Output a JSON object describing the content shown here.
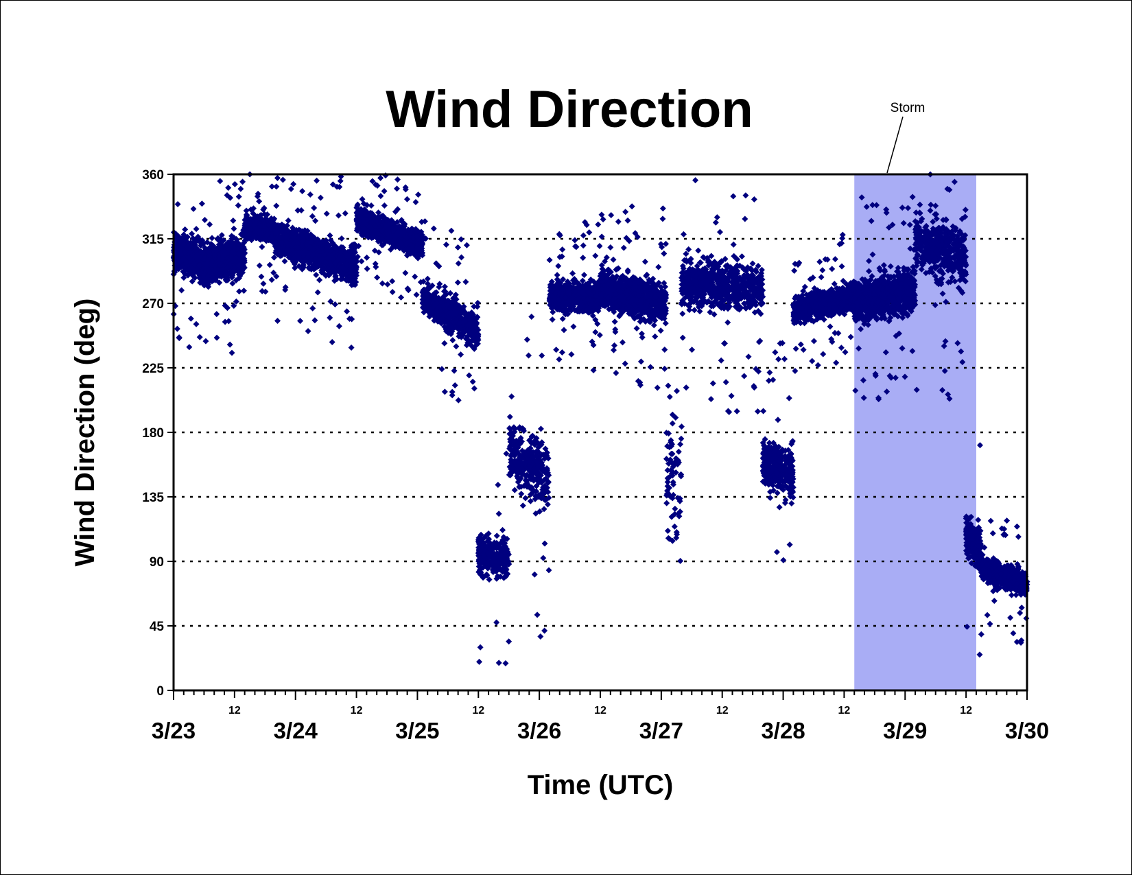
{
  "chart_data": {
    "type": "scatter",
    "title": "Wind Direction",
    "xlabel": "Time (UTC)",
    "ylabel": "Wind Direction (deg)",
    "ylim": [
      0,
      360
    ],
    "yticks": [
      0,
      45,
      90,
      135,
      180,
      225,
      270,
      315,
      360
    ],
    "xlim": [
      "3/23 00:00",
      "3/30 00:00"
    ],
    "xtick_major_labels": [
      "3/23",
      "3/24",
      "3/25",
      "3/26",
      "3/27",
      "3/28",
      "3/29",
      "3/30"
    ],
    "xtick_minor_label": "12",
    "grid": "horizontal dotted",
    "marker": "diamond",
    "colors": {
      "points": "#00007f",
      "shade": "#a9adf5",
      "axis": "#000000"
    },
    "annotations": [
      {
        "text": "Storm",
        "span": [
          "3/28 14:00",
          "3/29 14:00"
        ]
      }
    ],
    "series": [
      {
        "segments": [
          {
            "start": "3/23 00:00",
            "end": "3/23 06:00",
            "from": 305,
            "to": 300,
            "spread": 22,
            "density": 70
          },
          {
            "start": "3/23 06:00",
            "end": "3/23 14:00",
            "from": 295,
            "to": 305,
            "spread": 25,
            "density": 70
          },
          {
            "start": "3/23 14:00",
            "end": "3/23 20:00",
            "from": 325,
            "to": 320,
            "spread": 15,
            "density": 70
          },
          {
            "start": "3/23 20:00",
            "end": "3/24 12:00",
            "from": 315,
            "to": 295,
            "spread": 20,
            "density": 70
          },
          {
            "start": "3/24 12:00",
            "end": "3/24 18:00",
            "from": 330,
            "to": 320,
            "spread": 15,
            "density": 70
          },
          {
            "start": "3/24 18:00",
            "end": "3/25 01:00",
            "from": 320,
            "to": 310,
            "spread": 15,
            "density": 70
          },
          {
            "start": "3/25 01:00",
            "end": "3/25 12:00",
            "from": 275,
            "to": 250,
            "spread": 20,
            "density": 50
          },
          {
            "start": "3/25 12:00",
            "end": "3/25 18:00",
            "from": 95,
            "to": 90,
            "spread": 25,
            "density": 40
          },
          {
            "start": "3/25 18:00",
            "end": "3/26 02:00",
            "from": 165,
            "to": 150,
            "spread": 40,
            "density": 40
          },
          {
            "start": "3/26 02:00",
            "end": "3/26 12:00",
            "from": 275,
            "to": 275,
            "spread": 18,
            "density": 70
          },
          {
            "start": "3/26 12:00",
            "end": "3/27 01:00",
            "from": 280,
            "to": 270,
            "spread": 22,
            "density": 70
          },
          {
            "start": "3/27 01:00",
            "end": "3/27 04:00",
            "from": 150,
            "to": 150,
            "spread": 90,
            "density": 25
          },
          {
            "start": "3/27 04:00",
            "end": "3/27 20:00",
            "from": 285,
            "to": 280,
            "spread": 30,
            "density": 45
          },
          {
            "start": "3/27 20:00",
            "end": "3/28 02:00",
            "from": 160,
            "to": 150,
            "spread": 30,
            "density": 60
          },
          {
            "start": "3/28 02:00",
            "end": "3/28 14:00",
            "from": 265,
            "to": 275,
            "spread": 15,
            "density": 70
          },
          {
            "start": "3/28 14:00",
            "end": "3/29 02:00",
            "from": 270,
            "to": 280,
            "spread": 25,
            "density": 70
          },
          {
            "start": "3/29 02:00",
            "end": "3/29 12:00",
            "from": 315,
            "to": 300,
            "spread": 35,
            "density": 45
          },
          {
            "start": "3/29 12:00",
            "end": "3/29 15:00",
            "from": 110,
            "to": 95,
            "spread": 25,
            "density": 60
          },
          {
            "start": "3/29 15:00",
            "end": "3/30 00:00",
            "from": 85,
            "to": 75,
            "spread": 15,
            "density": 70
          }
        ]
      }
    ]
  }
}
